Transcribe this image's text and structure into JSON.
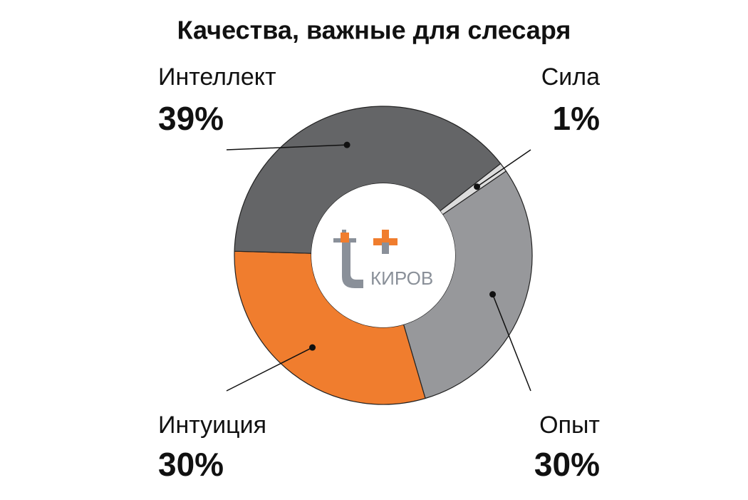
{
  "chart_data": {
    "type": "pie",
    "title": "Качества, важные для слесаря",
    "categories": [
      "Сила",
      "Опыт",
      "Интуиция",
      "Интеллект"
    ],
    "values": [
      1,
      30,
      30,
      39
    ],
    "value_labels": [
      "1%",
      "30%",
      "30%",
      "39%"
    ],
    "colors": [
      "#dcdcdc",
      "#97989b",
      "#f07d2e",
      "#646567"
    ]
  },
  "logo": {
    "text": "КИРОВ"
  }
}
